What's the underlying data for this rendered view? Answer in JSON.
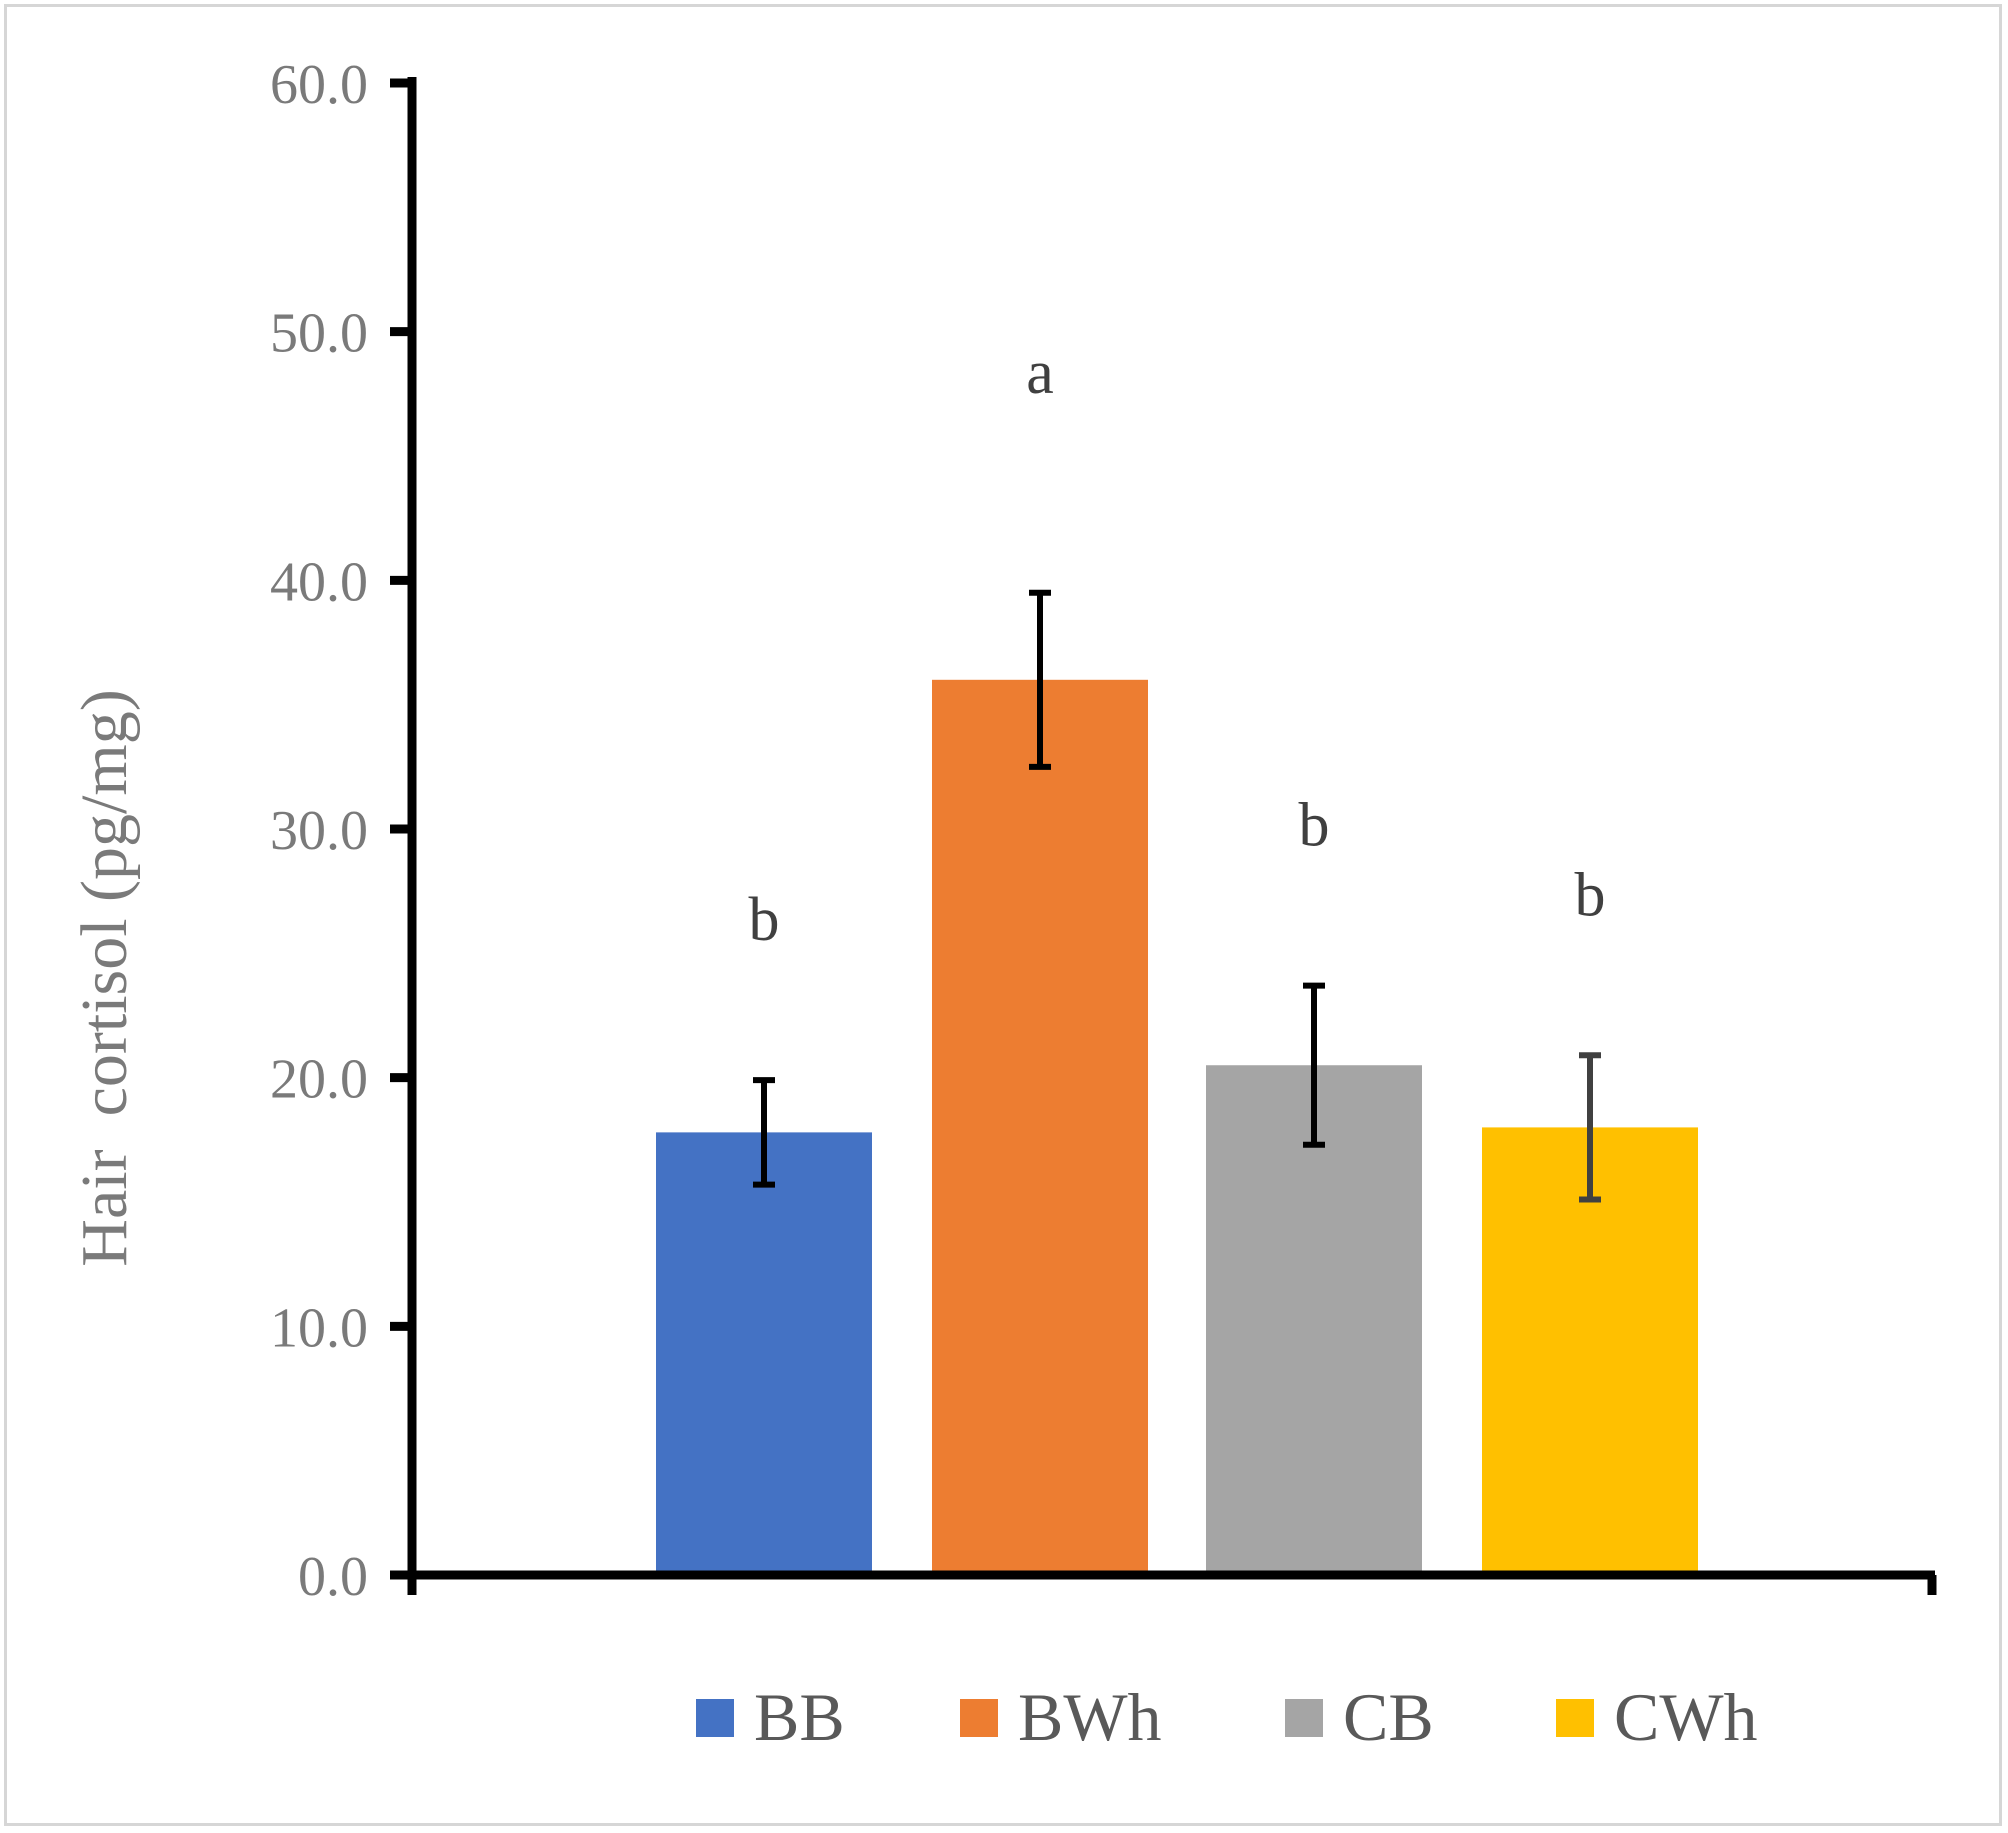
{
  "chart_data": {
    "type": "bar",
    "title": "",
    "xlabel": "",
    "ylabel": "Hair  cortisol (pg/mg)",
    "ylim": [
      0,
      60
    ],
    "yticks": [
      "0.0",
      "10.0",
      "20.0",
      "30.0",
      "40.0",
      "50.0",
      "60.0"
    ],
    "grid": false,
    "legend_position": "bottom",
    "categories": [
      "BB",
      "BWh",
      "CB",
      "CWh"
    ],
    "values": [
      17.8,
      36.0,
      20.5,
      18.0
    ],
    "errors": [
      2.1,
      3.5,
      3.2,
      2.9
    ],
    "significance": [
      "b",
      "a",
      "b",
      "b"
    ],
    "colors": [
      "#4472c4",
      "#ed7d31",
      "#a5a5a5",
      "#ffc000"
    ],
    "error_bar_colors": [
      "#000000",
      "#000000",
      "#000000",
      "#404040"
    ]
  }
}
